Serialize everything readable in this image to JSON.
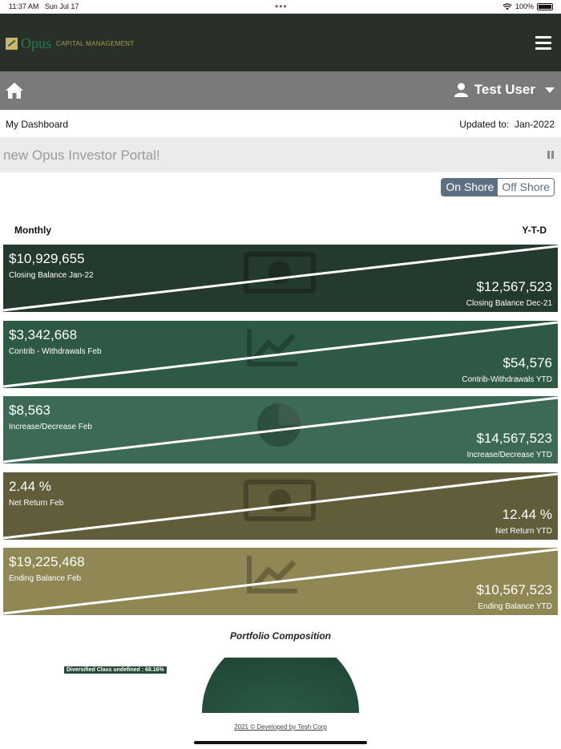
{
  "status_bar": {
    "time": "11:37 AM",
    "date": "Sun Jul 17",
    "battery": "100%"
  },
  "brand": {
    "name": "Opus",
    "tagline": "CAPITAL MANAGEMENT"
  },
  "user": {
    "name": "Test User"
  },
  "dashboard": {
    "title": "My Dashboard",
    "updated_label": "Updated to:",
    "updated_value": "Jan-2022"
  },
  "ticker": {
    "text": "new Opus Investor Portal!"
  },
  "toggle": {
    "on_shore": "On Shore",
    "off_shore": "Off Shore",
    "selected": "On Shore"
  },
  "periods": {
    "monthly": "Monthly",
    "ytd": "Y-T-D"
  },
  "cards": [
    {
      "monthly_value": "$10,929,655",
      "monthly_label": "Closing Balance Jan-22",
      "ytd_value": "$12,567,523",
      "ytd_label": "Closing Balance  Dec-21",
      "color": "#243a2e",
      "icon": "money-bill-icon"
    },
    {
      "monthly_value": "$3,342,668",
      "monthly_label": "Contrib - Withdrawals Feb",
      "ytd_value": "$54,576",
      "ytd_label": "Contrib-Withdrawals YTD",
      "color": "#2e5a45",
      "icon": "chart-line-icon"
    },
    {
      "monthly_value": "$8,563",
      "monthly_label": "Increase/Decrease Feb",
      "ytd_value": "$14,567,523",
      "ytd_label": "Increase/Decrease YTD",
      "color": "#3c6a56",
      "icon": "pie-chart-icon"
    },
    {
      "monthly_value": "2.44 %",
      "monthly_label": "Net Return Feb",
      "ytd_value": "12.44 %",
      "ytd_label": "Net Return YTD",
      "color": "#615d3a",
      "icon": "money-bill-icon"
    },
    {
      "monthly_value": "$19,225,468",
      "monthly_label": "Ending Balance Feb",
      "ytd_value": "$10,567,523",
      "ytd_label": "Ending Balance YTD",
      "color": "#8f8754",
      "icon": "chart-line-icon"
    }
  ],
  "portfolio": {
    "title": "Portfolio Composition",
    "label": "Diversified Class undefined : 68.16%",
    "color": "#264a37"
  },
  "footer": {
    "text": "2021 © Developed by Tesh Corp"
  }
}
